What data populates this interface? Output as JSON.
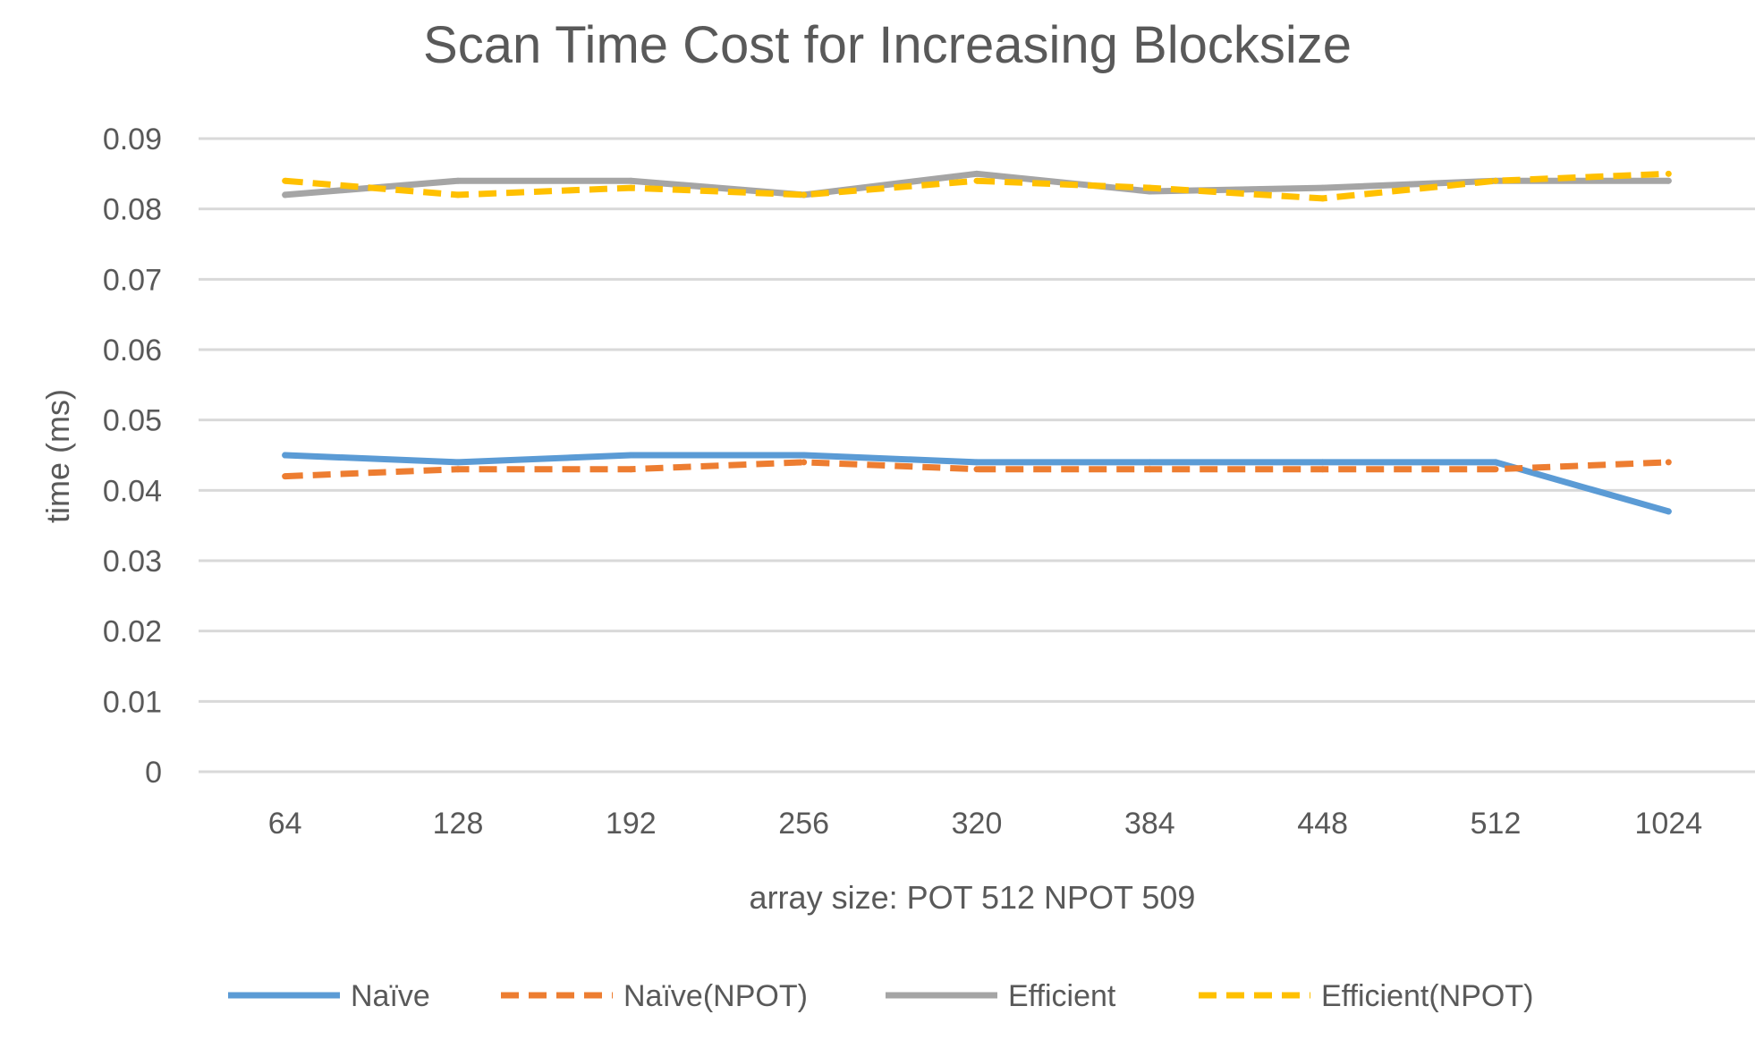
{
  "chart_data": {
    "type": "line",
    "title": "Scan Time Cost  for Increasing Blocksize",
    "xlabel": "array size: POT 512 NPOT 509",
    "ylabel": "time (ms)",
    "categories": [
      "64",
      "128",
      "192",
      "256",
      "320",
      "384",
      "448",
      "512",
      "1024"
    ],
    "ylim": [
      0,
      0.09
    ],
    "yticks": [
      "0",
      "0.01",
      "0.02",
      "0.03",
      "0.04",
      "0.05",
      "0.06",
      "0.07",
      "0.08",
      "0.09"
    ],
    "grid": true,
    "legend_position": "bottom",
    "series": [
      {
        "name": "Naïve",
        "color": "#5B9BD5",
        "dashed": false,
        "values": [
          0.045,
          0.044,
          0.045,
          0.045,
          0.044,
          0.044,
          0.044,
          0.044,
          0.037
        ]
      },
      {
        "name": "Naïve(NPOT)",
        "color": "#ED7D31",
        "dashed": true,
        "values": [
          0.042,
          0.043,
          0.043,
          0.044,
          0.043,
          0.043,
          0.043,
          0.043,
          0.044
        ]
      },
      {
        "name": "Efficient",
        "color": "#A5A5A5",
        "dashed": false,
        "values": [
          0.082,
          0.084,
          0.084,
          0.082,
          0.085,
          0.0825,
          0.083,
          0.084,
          0.084
        ]
      },
      {
        "name": "Efficient(NPOT)",
        "color": "#FFC000",
        "dashed": true,
        "values": [
          0.084,
          0.082,
          0.083,
          0.082,
          0.084,
          0.083,
          0.0815,
          0.084,
          0.085
        ]
      }
    ]
  }
}
